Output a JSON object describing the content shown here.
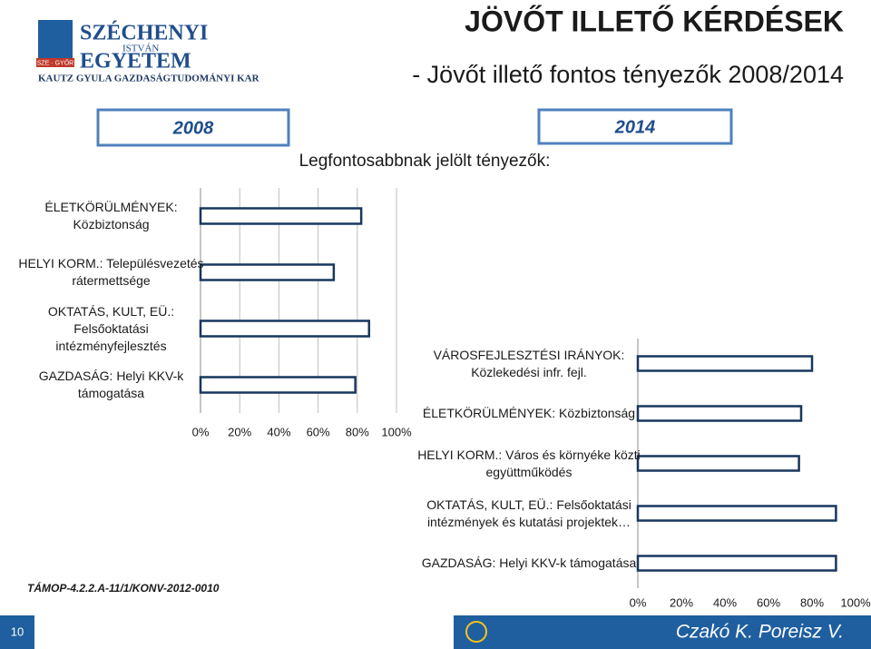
{
  "header": {
    "title": "JÖVŐT ILLETŐ KÉRDÉSEK",
    "subtitle": "- Jövőt illető fontos tényezők 2008/2014",
    "tab_left": "2008",
    "tab_right": "2014",
    "caption": "Legfontosabbnak jelölt tényezők:"
  },
  "logo": {
    "line1": "SZÉCHENYI",
    "line2": "ISTVÁN",
    "line3": "EGYETEM",
    "badge": "SZE · GYŐR",
    "faculty": "KAUTZ GYULA GAZDASÁGTUDOMÁNYI KAR"
  },
  "footer": {
    "project": "TÁMOP-4.2.2.A-11/1/KONV-2012-0010",
    "page": "10",
    "authors": "Czakó K. Poreisz V."
  },
  "chart_data": [
    {
      "type": "bar",
      "orientation": "horizontal",
      "grid": true,
      "color": "#ffffff",
      "edge_color": "#17375e",
      "categories": [
        "ÉLETKÖRÜLMÉNYEK: Közbiztonság",
        "HELYI KORM.: Településvezetés rátermettsége",
        "OKTATÁS, KULT, EÜ.: Felsőoktatási intézményfejlesztés",
        "GAZDASÁG: Helyi KKV-k támogatása"
      ],
      "values": [
        82,
        68,
        86,
        79
      ],
      "xlim": [
        0,
        100
      ],
      "xticks": [
        {
          "value": 0,
          "label": "0%"
        },
        {
          "value": 20,
          "label": "20%"
        },
        {
          "value": 40,
          "label": "40%"
        },
        {
          "value": 60,
          "label": "60%"
        },
        {
          "value": 80,
          "label": "80%"
        },
        {
          "value": 100,
          "label": "100%"
        }
      ]
    },
    {
      "type": "bar",
      "orientation": "horizontal",
      "grid": false,
      "color": "#ffffff",
      "edge_color": "#17375e",
      "categories": [
        "VÁROSFEJLESZTÉSI IRÁNYOK: Közlekedési infr. fejl.",
        "ÉLETKÖRÜLMÉNYEK: Közbiztonság",
        "HELYI KORM.: Város és környéke közti együttműködés",
        "OKTATÁS, KULT, EÜ.: Felsőoktatási intézmények és kutatási projektek…",
        "GAZDASÁG: Helyi KKV-k támogatása"
      ],
      "values": [
        80,
        75,
        74,
        91,
        91
      ],
      "xlim": [
        0,
        100
      ],
      "xticks": [
        {
          "value": 0,
          "label": "0%"
        },
        {
          "value": 20,
          "label": "20%"
        },
        {
          "value": 40,
          "label": "40%"
        },
        {
          "value": 60,
          "label": "60%"
        },
        {
          "value": 80,
          "label": "80%"
        },
        {
          "value": 100,
          "label": "100%"
        }
      ]
    }
  ]
}
